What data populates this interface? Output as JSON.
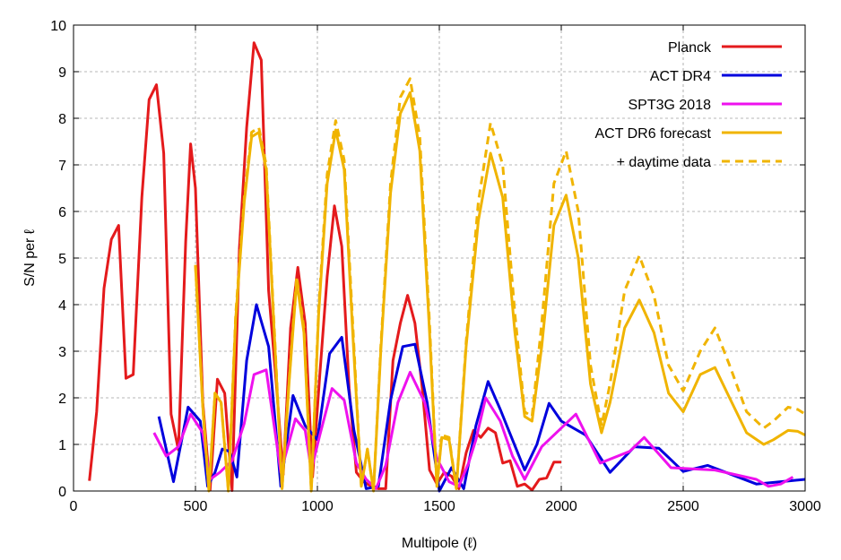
{
  "chart_data": {
    "type": "line",
    "xlabel": "Multipole (ℓ)",
    "ylabel": "S/N per ℓ",
    "xlim": [
      0,
      3000
    ],
    "ylim": [
      0,
      10
    ],
    "x_ticks": [
      0,
      500,
      1000,
      1500,
      2000,
      2500,
      3000
    ],
    "y_ticks": [
      0,
      1,
      2,
      3,
      4,
      5,
      6,
      7,
      8,
      9,
      10
    ],
    "grid": true,
    "legend_position": "top-right",
    "series": [
      {
        "name": "Planck",
        "color": "#e41a1c",
        "dash": "solid",
        "x": [
          65,
          95,
          125,
          155,
          185,
          215,
          245,
          280,
          310,
          340,
          370,
          400,
          430,
          460,
          480,
          500,
          530,
          560,
          590,
          620,
          650,
          680,
          710,
          740,
          770,
          800,
          830,
          860,
          890,
          920,
          950,
          980,
          1010,
          1040,
          1070,
          1100,
          1130,
          1160,
          1190,
          1220,
          1250,
          1280,
          1310,
          1340,
          1370,
          1400,
          1430,
          1460,
          1490,
          1520,
          1550,
          1580,
          1610,
          1640,
          1670,
          1700,
          1730,
          1760,
          1790,
          1820,
          1850,
          1880,
          1910,
          1940,
          1970,
          2000
        ],
        "y": [
          0.22,
          1.7,
          4.35,
          5.4,
          5.7,
          2.42,
          2.5,
          6.3,
          8.4,
          8.72,
          7.25,
          1.65,
          0.88,
          5.35,
          7.45,
          6.5,
          1.9,
          0.02,
          2.4,
          2.1,
          0.01,
          5.2,
          7.8,
          9.62,
          9.25,
          4.3,
          2.4,
          0.35,
          3.5,
          4.8,
          3.6,
          0.3,
          2.5,
          4.6,
          6.12,
          5.25,
          2.2,
          0.4,
          0.2,
          0.1,
          0.05,
          0.05,
          2.8,
          3.6,
          4.2,
          3.6,
          2.2,
          0.45,
          0.15,
          0.4,
          0.32,
          0.05,
          0.82,
          1.3,
          1.15,
          1.35,
          1.25,
          0.6,
          0.65,
          0.1,
          0.15,
          0.02,
          0.25,
          0.28,
          0.62,
          0.62
        ]
      },
      {
        "name": "ACT DR4",
        "color": "#0000dd",
        "dash": "solid",
        "x": [
          350,
          410,
          470,
          520,
          550,
          580,
          610,
          640,
          670,
          710,
          750,
          800,
          850,
          900,
          950,
          1000,
          1050,
          1100,
          1150,
          1200,
          1250,
          1300,
          1350,
          1400,
          1450,
          1500,
          1550,
          1600,
          1650,
          1700,
          1750,
          1800,
          1850,
          1900,
          1950,
          2000,
          2050,
          2100,
          2200,
          2300,
          2400,
          2500,
          2600,
          2700,
          2800,
          2900,
          3000
        ],
        "y": [
          1.6,
          0.2,
          1.8,
          1.5,
          0.1,
          0.4,
          0.9,
          0.85,
          0.3,
          2.8,
          4.0,
          3.1,
          0.1,
          2.05,
          1.4,
          1.1,
          2.95,
          3.3,
          1.3,
          0.05,
          0.1,
          1.95,
          3.1,
          3.15,
          1.9,
          0.0,
          0.5,
          0.05,
          1.4,
          2.35,
          1.75,
          1.1,
          0.45,
          1.0,
          1.88,
          1.5,
          1.35,
          1.2,
          0.4,
          0.95,
          0.92,
          0.42,
          0.55,
          0.35,
          0.15,
          0.2,
          0.25
        ]
      },
      {
        "name": "SPT3G 2018",
        "color": "#ee11ee",
        "dash": "solid",
        "x": [
          330,
          380,
          430,
          480,
          530,
          560,
          600,
          650,
          700,
          740,
          790,
          850,
          910,
          950,
          975,
          1010,
          1060,
          1110,
          1160,
          1200,
          1240,
          1280,
          1330,
          1380,
          1440,
          1490,
          1540,
          1580,
          1620,
          1650,
          1690,
          1750,
          1800,
          1850,
          1920,
          1970,
          2010,
          2060,
          2160,
          2280,
          2340,
          2450,
          2630,
          2800,
          2850,
          2900,
          2950
        ],
        "y": [
          1.25,
          0.75,
          0.95,
          1.65,
          1.25,
          0.25,
          0.4,
          0.65,
          1.45,
          2.5,
          2.6,
          0.4,
          1.55,
          1.3,
          0.45,
          1.2,
          2.2,
          1.95,
          0.6,
          0.25,
          0.05,
          0.55,
          1.9,
          2.55,
          1.9,
          0.7,
          0.2,
          0.1,
          0.6,
          1.1,
          2.0,
          1.5,
          0.75,
          0.25,
          0.95,
          1.2,
          1.4,
          1.65,
          0.6,
          0.85,
          1.15,
          0.5,
          0.45,
          0.25,
          0.1,
          0.15,
          0.3
        ]
      },
      {
        "name": "ACT DR6 forecast",
        "color": "#f0b400",
        "dash": "solid",
        "x": [
          500,
          530,
          555,
          580,
          605,
          635,
          665,
          700,
          730,
          760,
          790,
          825,
          855,
          885,
          915,
          945,
          975,
          1005,
          1040,
          1075,
          1110,
          1145,
          1180,
          1205,
          1230,
          1260,
          1300,
          1340,
          1380,
          1420,
          1460,
          1490,
          1510,
          1540,
          1570,
          1610,
          1660,
          1710,
          1760,
          1810,
          1850,
          1880,
          1920,
          1970,
          2020,
          2070,
          2120,
          2165,
          2200,
          2260,
          2320,
          2380,
          2440,
          2500,
          2570,
          2630,
          2690,
          2760,
          2830,
          2870,
          2930,
          2970,
          3000
        ],
        "y": [
          4.85,
          1.8,
          0.0,
          2.1,
          1.9,
          0.0,
          3.7,
          6.2,
          7.6,
          7.7,
          6.9,
          3.2,
          0.05,
          2.4,
          4.5,
          3.4,
          0.0,
          3.8,
          6.6,
          7.75,
          6.9,
          3.4,
          0.1,
          0.9,
          0.0,
          3.0,
          6.4,
          8.1,
          8.55,
          7.3,
          3.4,
          0.1,
          1.15,
          1.1,
          0.05,
          3.1,
          5.8,
          7.25,
          6.3,
          3.4,
          1.6,
          1.5,
          3.1,
          5.7,
          6.35,
          5.0,
          2.3,
          1.25,
          1.9,
          3.5,
          4.1,
          3.4,
          2.1,
          1.7,
          2.5,
          2.65,
          2.0,
          1.25,
          1.0,
          1.1,
          1.3,
          1.28,
          1.2
        ]
      },
      {
        "name": "+ daytime data",
        "color": "#f0b400",
        "dash": "dashed",
        "x": [
          500,
          530,
          555,
          580,
          605,
          635,
          665,
          700,
          730,
          760,
          790,
          825,
          855,
          885,
          915,
          945,
          975,
          1005,
          1040,
          1075,
          1110,
          1145,
          1180,
          1205,
          1230,
          1260,
          1300,
          1340,
          1380,
          1420,
          1460,
          1490,
          1510,
          1540,
          1570,
          1610,
          1660,
          1710,
          1760,
          1810,
          1850,
          1880,
          1920,
          1970,
          2020,
          2070,
          2120,
          2165,
          2200,
          2260,
          2320,
          2380,
          2440,
          2500,
          2570,
          2630,
          2690,
          2760,
          2830,
          2870,
          2930,
          2970,
          3000
        ],
        "y": [
          4.85,
          1.8,
          0.0,
          2.1,
          1.9,
          0.0,
          3.8,
          6.3,
          7.7,
          7.8,
          7.0,
          3.3,
          0.05,
          2.45,
          4.6,
          3.5,
          0.0,
          3.9,
          6.8,
          7.95,
          7.1,
          3.6,
          0.1,
          0.9,
          0.0,
          3.1,
          6.6,
          8.45,
          8.85,
          7.6,
          3.6,
          0.1,
          1.2,
          1.15,
          0.05,
          3.2,
          6.2,
          7.9,
          7.0,
          3.8,
          1.7,
          1.6,
          3.6,
          6.6,
          7.3,
          6.0,
          2.7,
          1.4,
          2.3,
          4.3,
          5.05,
          4.2,
          2.7,
          2.15,
          3.0,
          3.5,
          2.7,
          1.7,
          1.35,
          1.5,
          1.8,
          1.75,
          1.65
        ]
      }
    ]
  }
}
